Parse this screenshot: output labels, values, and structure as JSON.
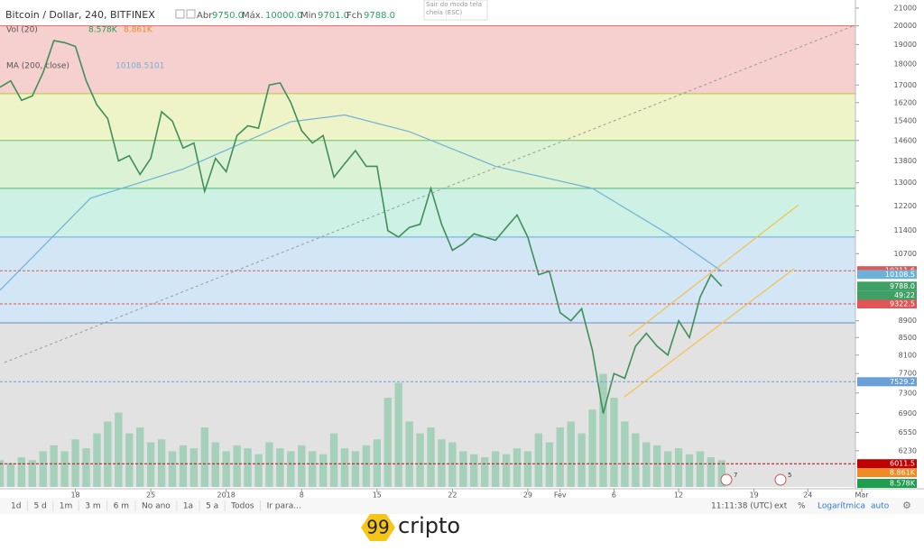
{
  "header": {
    "symbol": "Bitcoin / Dollar, 240, BITFINEX",
    "open_label": "Abr",
    "open": "9750.0",
    "high_label": "Máx.",
    "high": "10000.0",
    "low_label": "Min",
    "low": "9701.0",
    "close_label": "Fch",
    "close": "9788.0"
  },
  "indicators": {
    "vol_label": "Vol (20)",
    "vol": "8.578K",
    "vol_ma": "8.861K",
    "ma_label": "MA (200, close)",
    "ma_value": "10108.5101"
  },
  "tooltip": "Sair do modo tela cheia (ESC)",
  "chart_data": {
    "type": "line",
    "log_scale": true,
    "values": [
      16900,
      17200,
      16300,
      16500,
      17600,
      19200,
      19100,
      18900,
      17200,
      16100,
      15500,
      13800,
      14000,
      13300,
      13900,
      15800,
      15400,
      14300,
      14500,
      12700,
      13900,
      13400,
      14800,
      15200,
      15100,
      17000,
      17100,
      16200,
      15000,
      14500,
      14800,
      13200,
      13700,
      14200,
      13600,
      13600,
      11400,
      11200,
      11500,
      11600,
      12800,
      11600,
      10800,
      11000,
      11300,
      11200,
      11100,
      11500,
      11900,
      11200,
      10100,
      10200,
      9100,
      8900,
      9200,
      8200,
      6900,
      7700,
      7600,
      8300,
      8600,
      8300,
      8100,
      8900,
      8500,
      9500,
      10100,
      9788
    ],
    "color": "#3f8f5a",
    "ma": {
      "x": [
        0,
        8.4,
        17,
        27,
        32,
        38,
        46,
        55,
        62,
        67
      ],
      "values": [
        9680,
        12460,
        13500,
        15370,
        15660,
        14960,
        13600,
        12800,
        11300,
        10200
      ],
      "color": "#6fb1d6"
    },
    "volume": {
      "values": [
        9,
        8,
        10,
        9,
        12,
        14,
        12,
        16,
        13,
        18,
        22,
        25,
        18,
        20,
        15,
        16,
        12,
        14,
        13,
        20,
        15,
        12,
        14,
        13,
        11,
        15,
        13,
        12,
        14,
        12,
        11,
        18,
        13,
        12,
        14,
        16,
        30,
        35,
        22,
        18,
        20,
        16,
        15,
        12,
        11,
        10,
        12,
        11,
        13,
        12,
        18,
        15,
        20,
        22,
        18,
        26,
        38,
        30,
        22,
        18,
        15,
        14,
        12,
        13,
        11,
        12,
        10,
        9
      ],
      "color": "#8cc9a8"
    },
    "levels": [
      20000,
      16600,
      14600,
      12800,
      11200,
      8850
    ],
    "level_colors": [
      "#e06666",
      "#b5c93a",
      "#6cc46c",
      "#4fb37a",
      "#6aa6dc",
      "#6a8fc0"
    ],
    "band_colors": [
      "#f6cfcf",
      "#eef4c8",
      "#dbf3d4",
      "#cdf1e4",
      "#d3e6f6",
      "#e2e2e2"
    ],
    "price_labels": [
      {
        "value": 10211.6,
        "color": "#e05555",
        "dashed": true
      },
      {
        "value": 10108.5,
        "color": "#6fb1d6",
        "dashed": false
      },
      {
        "value": 9788,
        "label": "9788.0",
        "color": "#3fa066",
        "dashed": false
      },
      {
        "value": 9322.5,
        "color": "#e05555",
        "dashed": true
      },
      {
        "value": 7529.2,
        "color": "#6a9fd8",
        "dashed": true
      },
      {
        "value": 6011.5,
        "color": "#c00000",
        "dashed": true
      }
    ],
    "countdown": "49:22",
    "volume_labels": [
      {
        "label": "8.861K",
        "color": "#f08a24"
      },
      {
        "label": "8.578K",
        "color": "#1e9e50"
      }
    ],
    "xlim": [
      0,
      80
    ],
    "ylim": [
      5640,
      21470
    ],
    "xticks": [
      {
        "value": 7,
        "label": "18"
      },
      {
        "value": 14,
        "label": "25"
      },
      {
        "value": 21,
        "label": "2018"
      },
      {
        "value": 28,
        "label": "8"
      },
      {
        "value": 35,
        "label": "15"
      },
      {
        "value": 42,
        "label": "22"
      },
      {
        "value": 49,
        "label": "29"
      },
      {
        "value": 52,
        "label": "Fev"
      },
      {
        "value": 57,
        "label": "6"
      },
      {
        "value": 63,
        "label": "12"
      },
      {
        "value": 70,
        "label": "19"
      },
      {
        "value": 75,
        "label": "24"
      },
      {
        "value": 80,
        "label": "Mar"
      }
    ],
    "yticks": [
      21000,
      20000,
      19000,
      18000,
      17000,
      16200,
      15400,
      14600,
      13800,
      13000,
      12200,
      11400,
      10700,
      8900,
      8500,
      8100,
      7700,
      7300,
      6900,
      6550,
      6230
    ]
  },
  "toolbar": {
    "ranges": [
      "1d",
      "5 d",
      "1m",
      "3 m",
      "6 m",
      "No ano",
      "1a",
      "5 a",
      "Todos"
    ],
    "goto": "Ir para...",
    "time": "11:11:38 (UTC)",
    "ext": "ext",
    "percent": "%",
    "log": "Logarítmica",
    "auto": "auto"
  },
  "badges": [
    "7",
    "5"
  ],
  "logo": {
    "number": "99",
    "word": "cripto"
  }
}
